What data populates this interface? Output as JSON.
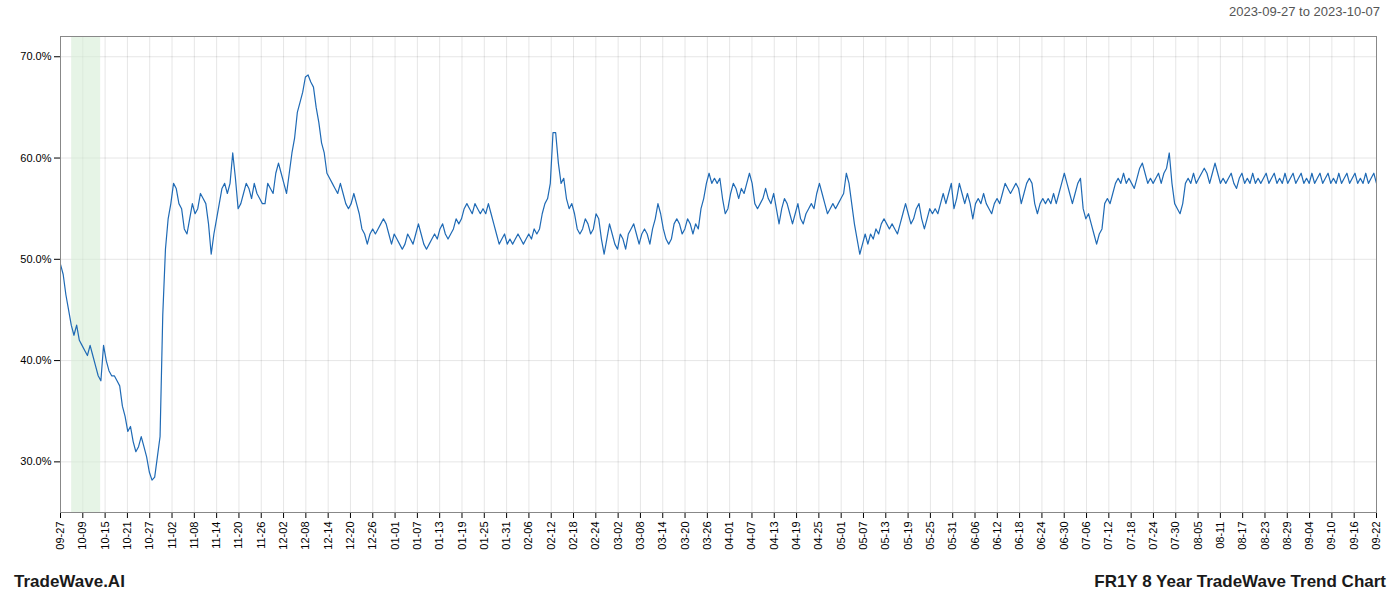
{
  "chart_data": {
    "type": "line",
    "title": "2023-09-27 to 2023-10-07",
    "annotations": [
      "TradeWave.AI",
      "FR1Y 8 Year TradeWave Trend Chart"
    ],
    "color": "#1f6ab5",
    "grid": true,
    "highlight": {
      "x": [
        0.5,
        1.8
      ],
      "color": "#d6edd6"
    },
    "xlim": [
      0,
      59
    ],
    "xticks": [
      {
        "value": 0,
        "label": "09-27"
      },
      {
        "value": 1,
        "label": "10-09"
      },
      {
        "value": 2,
        "label": "10-15"
      },
      {
        "value": 3,
        "label": "10-21"
      },
      {
        "value": 4,
        "label": "10-27"
      },
      {
        "value": 5,
        "label": "11-02"
      },
      {
        "value": 6,
        "label": "11-08"
      },
      {
        "value": 7,
        "label": "11-14"
      },
      {
        "value": 8,
        "label": "11-20"
      },
      {
        "value": 9,
        "label": "11-26"
      },
      {
        "value": 10,
        "label": "12-02"
      },
      {
        "value": 11,
        "label": "12-08"
      },
      {
        "value": 12,
        "label": "12-14"
      },
      {
        "value": 13,
        "label": "12-20"
      },
      {
        "value": 14,
        "label": "12-26"
      },
      {
        "value": 15,
        "label": "01-01"
      },
      {
        "value": 16,
        "label": "01-07"
      },
      {
        "value": 17,
        "label": "01-13"
      },
      {
        "value": 18,
        "label": "01-19"
      },
      {
        "value": 19,
        "label": "01-25"
      },
      {
        "value": 20,
        "label": "01-31"
      },
      {
        "value": 21,
        "label": "02-06"
      },
      {
        "value": 22,
        "label": "02-12"
      },
      {
        "value": 23,
        "label": "02-18"
      },
      {
        "value": 24,
        "label": "02-24"
      },
      {
        "value": 25,
        "label": "03-02"
      },
      {
        "value": 26,
        "label": "03-08"
      },
      {
        "value": 27,
        "label": "03-14"
      },
      {
        "value": 28,
        "label": "03-20"
      },
      {
        "value": 29,
        "label": "03-26"
      },
      {
        "value": 30,
        "label": "04-01"
      },
      {
        "value": 31,
        "label": "04-07"
      },
      {
        "value": 32,
        "label": "04-13"
      },
      {
        "value": 33,
        "label": "04-19"
      },
      {
        "value": 34,
        "label": "04-25"
      },
      {
        "value": 35,
        "label": "05-01"
      },
      {
        "value": 36,
        "label": "05-07"
      },
      {
        "value": 37,
        "label": "05-13"
      },
      {
        "value": 38,
        "label": "05-19"
      },
      {
        "value": 39,
        "label": "05-25"
      },
      {
        "value": 40,
        "label": "05-31"
      },
      {
        "value": 41,
        "label": "06-06"
      },
      {
        "value": 42,
        "label": "06-12"
      },
      {
        "value": 43,
        "label": "06-18"
      },
      {
        "value": 44,
        "label": "06-24"
      },
      {
        "value": 45,
        "label": "06-30"
      },
      {
        "value": 46,
        "label": "07-06"
      },
      {
        "value": 47,
        "label": "07-12"
      },
      {
        "value": 48,
        "label": "07-18"
      },
      {
        "value": 49,
        "label": "07-24"
      },
      {
        "value": 50,
        "label": "07-30"
      },
      {
        "value": 51,
        "label": "08-05"
      },
      {
        "value": 52,
        "label": "08-11"
      },
      {
        "value": 53,
        "label": "08-17"
      },
      {
        "value": 54,
        "label": "08-23"
      },
      {
        "value": 55,
        "label": "08-29"
      },
      {
        "value": 56,
        "label": "09-04"
      },
      {
        "value": 57,
        "label": "09-10"
      },
      {
        "value": 58,
        "label": "09-16"
      },
      {
        "value": 59,
        "label": "09-22"
      }
    ],
    "ylim": [
      25,
      72
    ],
    "yticks": [
      {
        "value": 30,
        "label": "30.0%"
      },
      {
        "value": 40,
        "label": "40.0%"
      },
      {
        "value": 50,
        "label": "50.0%"
      },
      {
        "value": 60,
        "label": "60.0%"
      },
      {
        "value": 70,
        "label": "70.0%"
      }
    ],
    "values": [
      49.5,
      48.5,
      46.5,
      45.0,
      43.5,
      42.5,
      43.5,
      42.0,
      41.5,
      41.0,
      40.5,
      41.5,
      40.5,
      39.5,
      38.5,
      38.0,
      41.5,
      40.0,
      39.0,
      38.5,
      38.5,
      38.0,
      37.5,
      35.5,
      34.5,
      33.0,
      33.5,
      32.0,
      31.0,
      31.5,
      32.5,
      31.5,
      30.5,
      29.0,
      28.2,
      28.5,
      30.5,
      32.5,
      44.5,
      51.0,
      54.0,
      55.5,
      57.5,
      57.0,
      55.5,
      55.0,
      53.0,
      52.5,
      54.0,
      55.5,
      54.5,
      55.0,
      56.5,
      56.0,
      55.5,
      53.5,
      50.5,
      52.5,
      54.0,
      55.5,
      57.0,
      57.5,
      56.5,
      57.5,
      60.5,
      58.0,
      55.0,
      55.5,
      56.5,
      57.5,
      57.0,
      56.0,
      57.5,
      56.5,
      56.0,
      55.5,
      55.5,
      57.5,
      57.0,
      56.5,
      58.5,
      59.5,
      58.5,
      57.5,
      56.5,
      58.5,
      60.5,
      62.0,
      64.5,
      65.5,
      66.5,
      68.0,
      68.2,
      67.5,
      67.0,
      65.0,
      63.5,
      61.5,
      60.5,
      58.5,
      58.0,
      57.5,
      57.0,
      56.5,
      57.5,
      56.5,
      55.5,
      55.0,
      55.5,
      56.5,
      55.5,
      54.5,
      53.0,
      52.5,
      51.5,
      52.5,
      53.0,
      52.5,
      53.0,
      53.5,
      54.0,
      53.5,
      52.5,
      51.5,
      52.5,
      52.0,
      51.5,
      51.0,
      51.5,
      52.5,
      52.0,
      51.5,
      52.5,
      53.5,
      52.5,
      51.5,
      51.0,
      51.5,
      52.0,
      52.5,
      52.0,
      53.0,
      53.5,
      52.5,
      52.0,
      52.5,
      53.0,
      54.0,
      53.5,
      54.0,
      55.0,
      55.5,
      55.0,
      54.5,
      55.5,
      55.0,
      54.5,
      55.0,
      54.5,
      55.5,
      54.5,
      53.5,
      52.5,
      51.5,
      52.0,
      52.5,
      51.5,
      52.0,
      51.5,
      52.0,
      52.5,
      52.0,
      51.5,
      52.0,
      52.5,
      52.0,
      53.0,
      52.5,
      53.0,
      54.5,
      55.5,
      56.0,
      57.5,
      62.5,
      62.5,
      59.5,
      57.5,
      58.0,
      56.0,
      55.0,
      55.5,
      54.5,
      53.0,
      52.5,
      53.0,
      54.0,
      53.5,
      52.5,
      53.0,
      54.5,
      54.0,
      52.0,
      50.5,
      52.0,
      53.5,
      52.5,
      51.5,
      51.0,
      52.5,
      52.0,
      51.0,
      52.5,
      53.0,
      53.5,
      52.5,
      51.5,
      52.5,
      53.0,
      52.5,
      51.5,
      53.0,
      54.0,
      55.5,
      54.5,
      53.0,
      52.0,
      51.5,
      52.0,
      53.5,
      54.0,
      53.5,
      52.5,
      53.0,
      54.0,
      53.5,
      52.5,
      53.5,
      53.0,
      55.0,
      56.0,
      57.5,
      58.5,
      57.5,
      58.0,
      57.5,
      58.0,
      56.0,
      54.5,
      55.0,
      56.5,
      57.5,
      57.0,
      56.0,
      57.0,
      56.5,
      57.5,
      58.5,
      57.5,
      55.5,
      55.0,
      55.5,
      56.0,
      57.0,
      56.0,
      55.5,
      56.5,
      55.0,
      53.5,
      55.0,
      56.0,
      55.5,
      54.5,
      53.5,
      54.5,
      55.5,
      54.0,
      53.5,
      54.5,
      55.0,
      55.5,
      55.0,
      56.5,
      57.5,
      56.5,
      55.5,
      54.5,
      55.0,
      55.5,
      55.0,
      55.5,
      56.0,
      56.5,
      58.5,
      57.5,
      55.5,
      53.5,
      52.0,
      50.5,
      51.5,
      52.5,
      51.5,
      52.5,
      52.0,
      53.0,
      52.5,
      53.5,
      54.0,
      53.5,
      53.0,
      53.5,
      53.0,
      52.5,
      53.5,
      54.5,
      55.5,
      54.5,
      53.5,
      54.0,
      55.0,
      55.5,
      54.0,
      53.0,
      54.0,
      55.0,
      54.5,
      55.0,
      54.5,
      55.5,
      56.5,
      55.5,
      56.5,
      57.5,
      55.0,
      56.0,
      57.5,
      56.5,
      55.5,
      56.5,
      55.5,
      54.0,
      55.5,
      56.0,
      55.5,
      56.5,
      55.5,
      55.0,
      54.5,
      55.5,
      56.0,
      55.5,
      56.5,
      57.5,
      57.0,
      56.5,
      57.0,
      57.5,
      57.0,
      55.5,
      56.5,
      57.5,
      58.0,
      57.5,
      55.5,
      54.5,
      55.5,
      56.0,
      55.5,
      56.0,
      55.5,
      56.5,
      55.5,
      56.5,
      57.5,
      58.5,
      57.5,
      56.5,
      55.5,
      56.5,
      57.5,
      58.0,
      55.0,
      54.0,
      54.5,
      53.5,
      52.5,
      51.5,
      52.5,
      53.0,
      55.5,
      56.0,
      55.5,
      56.5,
      57.5,
      58.0,
      57.5,
      58.5,
      57.5,
      58.0,
      57.5,
      57.0,
      58.0,
      59.0,
      59.5,
      58.5,
      57.5,
      58.0,
      57.5,
      58.0,
      58.5,
      57.5,
      58.5,
      59.0,
      60.5,
      57.5,
      55.5,
      55.0,
      54.5,
      55.5,
      57.5,
      58.0,
      57.5,
      58.5,
      57.5,
      58.0,
      58.5,
      59.0,
      58.5,
      57.5,
      58.5,
      59.5,
      58.5,
      57.5,
      58.0,
      57.5,
      58.0,
      58.5,
      57.5,
      57.0,
      58.0,
      58.5,
      57.5,
      58.0,
      57.5,
      58.5,
      57.5,
      58.0,
      57.5,
      58.0,
      58.5,
      57.5,
      58.0,
      58.5,
      57.5,
      58.0,
      57.5,
      58.5,
      57.5,
      58.0,
      58.5,
      57.5,
      58.0,
      58.5,
      57.5,
      58.0,
      57.5,
      58.5,
      57.5,
      58.0,
      58.5,
      57.5,
      58.0,
      58.5,
      57.5,
      58.0,
      57.5,
      58.5,
      57.5,
      58.0,
      58.5,
      57.5,
      58.0,
      58.5,
      57.5,
      58.0,
      57.5,
      58.5,
      57.5,
      58.0,
      58.5,
      57.5
    ]
  }
}
